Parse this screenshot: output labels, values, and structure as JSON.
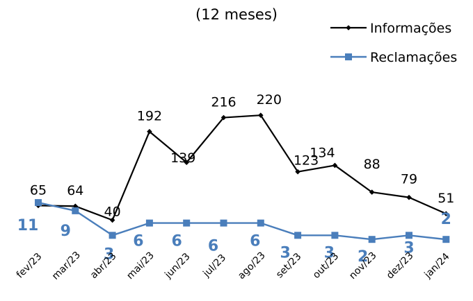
{
  "chart_data": {
    "type": "line",
    "subtitle": "(12 meses)",
    "categories": [
      "fev/23",
      "mar/23",
      "abr/23",
      "mai/23",
      "jun/23",
      "jul/23",
      "ago/23",
      "set/23",
      "out/23",
      "nov/23",
      "dez/23",
      "jan/24"
    ],
    "series": [
      {
        "name": "Informações",
        "color": "#000000",
        "marker": "diamond",
        "values": [
          65,
          64,
          40,
          192,
          139,
          216,
          220,
          123,
          134,
          88,
          79,
          51
        ]
      },
      {
        "name": "Reclamações",
        "color": "#4a7ebb",
        "marker": "square",
        "values": [
          11,
          9,
          3,
          6,
          6,
          6,
          6,
          3,
          3,
          2,
          3,
          2
        ]
      }
    ],
    "legend_position": "top-right",
    "grid": false
  }
}
